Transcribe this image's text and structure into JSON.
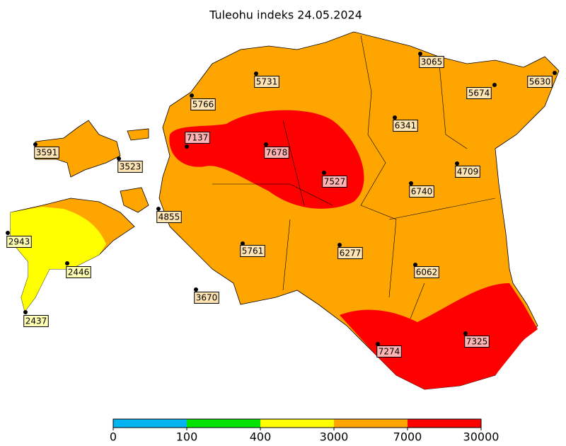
{
  "title": "Tuleohu indeks 24.05.2024",
  "stations": [
    3065,
    5630,
    5731,
    5674,
    5766,
    6341,
    7137,
    3591,
    7678,
    3523,
    7527,
    4709,
    6740,
    4855,
    2943,
    5761,
    6277,
    2446,
    6062,
    3670,
    2437,
    7274,
    7325
  ],
  "colorbar": {
    "ticks": [
      0,
      100,
      400,
      3000,
      7000,
      30000
    ],
    "colors": [
      "#00b4f0",
      "#00e400",
      "#ffff00",
      "#ffa500",
      "#ff0000"
    ]
  }
}
